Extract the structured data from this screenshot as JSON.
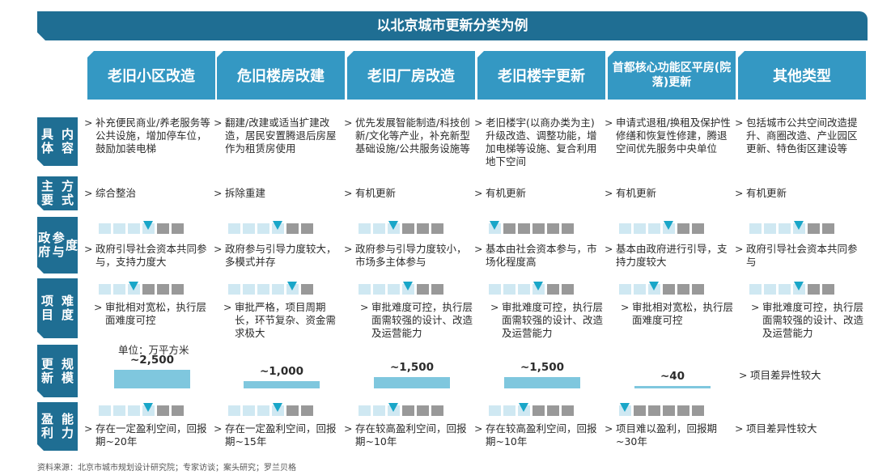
{
  "title": "以北京城市更新分类为例",
  "columns": [
    "老旧小区改造",
    "危旧楼房改建",
    "老旧厂房改造",
    "老旧楼宇更新",
    "首都核心功能区平房(院落)更新",
    "其他类型"
  ],
  "row_labels": [
    "具体内容",
    "主要方式",
    "政府参与度",
    "项目难度",
    "更新规模",
    "盈利能力"
  ],
  "content": [
    "补充便民商业/养老服务等公共设施，增加停车位，鼓励加装电梯",
    "翻建/改建或适当扩建改造，居民安置腾退后房屋作为租赁房使用",
    "优先发展智能制造/科技创新/文化等产业，补充新型基础设施/公共服务设施等",
    "老旧楼宇(以商办类为主)升级改造、调整功能，增加电梯等设施、复合利用地下空间",
    "申请式退租/换租及保护性修缮和恢复性修建，腾退空间优先服务中央单位",
    "包括城市公共空间改造提升、商圈改造、产业园区更新、特色街区建设等"
  ],
  "method": [
    "综合整治",
    "拆除重建",
    "有机更新",
    "有机更新",
    "有机更新",
    "有机更新"
  ],
  "gov_level": [
    4,
    4,
    3,
    1,
    4,
    4
  ],
  "gov_text": [
    "政府引导社会资本共同参与，支持力度大",
    "政府参与引导力度较大，多模式并存",
    "政府参与引导力度较小，市场多主体参与",
    "基本由社会资本参与，市场化程度高",
    "基本由政府进行引导，支持力度较大",
    "政府引导社会资本共同参与"
  ],
  "difficulty_level": [
    3,
    5,
    4,
    4,
    3,
    4
  ],
  "difficulty_text": [
    "审批相对宽松，执行层面难度可控",
    "审批严格，项目周期长，环节复杂、资金需求极大",
    "审批难度可控，执行层面需较强的设计、改造及运营能力",
    "审批难度可控，执行层面需较强的设计、改造及运营能力",
    "审批相对宽松，执行层面难度可控",
    "审批难度可控，执行层面需较强的设计、改造及运营能力"
  ],
  "scale_unit": "单位：万平方米",
  "chart_data": {
    "type": "bar",
    "categories": [
      "老旧小区改造",
      "危旧楼房改建",
      "老旧厂房改造",
      "老旧楼宇更新",
      "首都核心功能区平房(院落)更新"
    ],
    "values": [
      2500,
      1000,
      1500,
      1500,
      40
    ],
    "labels": [
      "~2,500",
      "~1,000",
      "~1,500",
      "~1,500",
      "~40"
    ]
  },
  "scale_other": "项目差异性较大",
  "profit_level": [
    4,
    4,
    3,
    3,
    1,
    null
  ],
  "profit_text": [
    "存在一定盈利空间，回报期~20年",
    "存在一定盈利空间，回报期~15年",
    "存在较高盈利空间，回报期~10年",
    "存在较高盈利空间，回报期~10年",
    "项目难以盈利，回报期~30年",
    "项目差异性较大"
  ],
  "arrow": ">",
  "source": "资料来源：北京市城市规划设计研究院；专家访谈；案头研究；罗兰贝格",
  "colors": {
    "dark_blue": "#1f6e93",
    "mid_blue": "#3498c3",
    "light_sq": "#cfe8f2",
    "grey_sq": "#999999",
    "marker": "#19a6c8",
    "bar": "#7fc7de"
  }
}
